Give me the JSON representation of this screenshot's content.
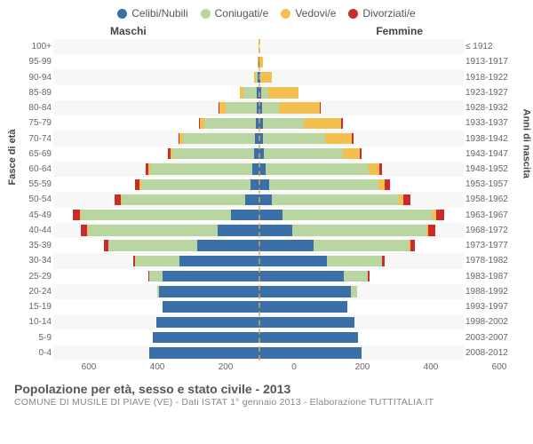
{
  "legend": [
    {
      "label": "Celibi/Nubili",
      "color": "#3a6fa8"
    },
    {
      "label": "Coniugati/e",
      "color": "#b9d6a1"
    },
    {
      "label": "Vedovi/e",
      "color": "#f3c04f"
    },
    {
      "label": "Divorziati/e",
      "color": "#cc2b2b"
    }
  ],
  "headers": {
    "male": "Maschi",
    "female": "Femmine"
  },
  "axis": {
    "left_title": "Fasce di età",
    "right_title": "Anni di nascita",
    "xmax": 600,
    "xticks": [
      600,
      400,
      200,
      0,
      200,
      400,
      600
    ]
  },
  "colors": {
    "grid": "#ffffff",
    "band_odd": "#f7f7f7",
    "center_dash": "#e8a54a",
    "text": "#666666"
  },
  "footer": {
    "title": "Popolazione per età, sesso e stato civile - 2013",
    "subtitle": "COMUNE DI MUSILE DI PIAVE (VE) - Dati ISTAT 1° gennaio 2013 - Elaborazione TUTTITALIA.IT"
  },
  "rows": [
    {
      "age": "100+",
      "birth": "≤ 1912",
      "m": [
        0,
        0,
        0,
        0
      ],
      "f": [
        0,
        0,
        2,
        0
      ]
    },
    {
      "age": "95-99",
      "birth": "1913-1917",
      "m": [
        0,
        0,
        2,
        0
      ],
      "f": [
        2,
        0,
        10,
        0
      ]
    },
    {
      "age": "90-94",
      "birth": "1918-1922",
      "m": [
        2,
        6,
        4,
        0
      ],
      "f": [
        4,
        4,
        30,
        0
      ]
    },
    {
      "age": "85-89",
      "birth": "1923-1927",
      "m": [
        4,
        40,
        10,
        0
      ],
      "f": [
        8,
        20,
        90,
        0
      ]
    },
    {
      "age": "80-84",
      "birth": "1928-1932",
      "m": [
        6,
        90,
        18,
        2
      ],
      "f": [
        10,
        50,
        120,
        2
      ]
    },
    {
      "age": "75-79",
      "birth": "1933-1937",
      "m": [
        8,
        150,
        14,
        2
      ],
      "f": [
        12,
        120,
        110,
        4
      ]
    },
    {
      "age": "70-74",
      "birth": "1938-1942",
      "m": [
        10,
        210,
        10,
        4
      ],
      "f": [
        14,
        180,
        80,
        4
      ]
    },
    {
      "age": "65-69",
      "birth": "1943-1947",
      "m": [
        12,
        240,
        6,
        6
      ],
      "f": [
        16,
        230,
        50,
        6
      ]
    },
    {
      "age": "60-64",
      "birth": "1948-1952",
      "m": [
        18,
        300,
        4,
        8
      ],
      "f": [
        22,
        300,
        30,
        8
      ]
    },
    {
      "age": "55-59",
      "birth": "1953-1957",
      "m": [
        24,
        320,
        4,
        12
      ],
      "f": [
        30,
        320,
        20,
        14
      ]
    },
    {
      "age": "50-54",
      "birth": "1958-1962",
      "m": [
        40,
        360,
        2,
        18
      ],
      "f": [
        40,
        370,
        14,
        20
      ]
    },
    {
      "age": "45-49",
      "birth": "1963-1967",
      "m": [
        80,
        440,
        2,
        22
      ],
      "f": [
        70,
        440,
        10,
        24
      ]
    },
    {
      "age": "40-44",
      "birth": "1968-1972",
      "m": [
        120,
        380,
        2,
        18
      ],
      "f": [
        100,
        390,
        6,
        20
      ]
    },
    {
      "age": "35-39",
      "birth": "1973-1977",
      "m": [
        180,
        260,
        0,
        12
      ],
      "f": [
        160,
        280,
        4,
        14
      ]
    },
    {
      "age": "30-34",
      "birth": "1978-1982",
      "m": [
        230,
        130,
        0,
        6
      ],
      "f": [
        200,
        160,
        2,
        8
      ]
    },
    {
      "age": "25-29",
      "birth": "1983-1987",
      "m": [
        280,
        40,
        0,
        2
      ],
      "f": [
        250,
        70,
        0,
        4
      ]
    },
    {
      "age": "20-24",
      "birth": "1988-1992",
      "m": [
        290,
        6,
        0,
        0
      ],
      "f": [
        270,
        18,
        0,
        0
      ]
    },
    {
      "age": "15-19",
      "birth": "1993-1997",
      "m": [
        280,
        0,
        0,
        0
      ],
      "f": [
        260,
        0,
        0,
        0
      ]
    },
    {
      "age": "10-14",
      "birth": "1998-2002",
      "m": [
        300,
        0,
        0,
        0
      ],
      "f": [
        280,
        0,
        0,
        0
      ]
    },
    {
      "age": "5-9",
      "birth": "2003-2007",
      "m": [
        310,
        0,
        0,
        0
      ],
      "f": [
        290,
        0,
        0,
        0
      ]
    },
    {
      "age": "0-4",
      "birth": "2008-2012",
      "m": [
        320,
        0,
        0,
        0
      ],
      "f": [
        300,
        0,
        0,
        0
      ]
    }
  ]
}
